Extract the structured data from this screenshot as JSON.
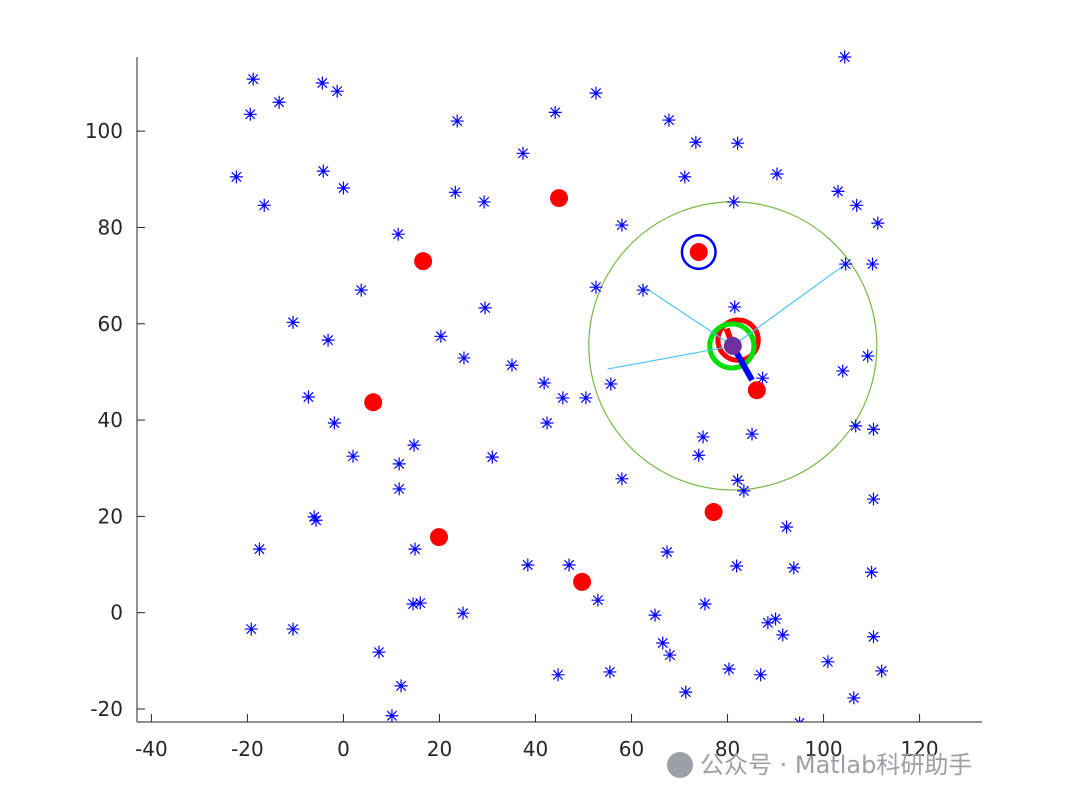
{
  "chart_data": {
    "type": "scatter",
    "xlim": [
      -43,
      133
    ],
    "ylim": [
      -22.7,
      115.4
    ],
    "xticks": [
      -40,
      -20,
      0,
      20,
      40,
      60,
      80,
      100,
      120
    ],
    "yticks": [
      -20,
      0,
      20,
      40,
      60,
      80,
      100
    ],
    "series": [
      {
        "marker": "asterisk",
        "color": "#0000ff",
        "x": [
          -18.8,
          -19.4,
          -13.4,
          -4.4,
          -1.3,
          -22.3,
          -16.5,
          -4.2,
          0.0,
          11.4,
          3.7,
          -10.5,
          -3.2,
          -7.3,
          -1.9,
          2.0,
          14.7,
          11.6,
          11.6,
          -6.1,
          -5.7,
          -17.5,
          -19.2,
          -10.5,
          7.4,
          12.0,
          10.1,
          14.9,
          14.5,
          16.0,
          24.9,
          20.3,
          25.1,
          29.5,
          23.3,
          23.7,
          29.3,
          37.4,
          44.1,
          52.6,
          35.1,
          41.8,
          45.7,
          50.5,
          42.4,
          31.0,
          38.4,
          47.0,
          53.0,
          44.7,
          55.5,
          55.7,
          58.0,
          52.6,
          58.0,
          62.4,
          67.8,
          73.4,
          71.1,
          82.1,
          81.3,
          90.3,
          81.5,
          87.3,
          74.9,
          74.0,
          85.1,
          82.1,
          83.4,
          103.0,
          106.9,
          111.3,
          104.6,
          110.2,
          109.2,
          104.0,
          106.7,
          110.4,
          110.4,
          104.4,
          67.4,
          81.9,
          92.3,
          93.8,
          110.0,
          64.9,
          75.3,
          88.4,
          90.0,
          91.5,
          66.5,
          68.0,
          80.3,
          86.9,
          100.9,
          110.4,
          112.1,
          106.3,
          71.3,
          95.0
        ],
        "y": [
          110.8,
          103.5,
          106.0,
          110.0,
          108.3,
          90.5,
          84.6,
          91.7,
          88.2,
          78.6,
          67.0,
          60.3,
          56.6,
          44.8,
          39.4,
          32.5,
          34.8,
          30.9,
          25.7,
          19.9,
          19.2,
          13.2,
          -3.4,
          -3.4,
          -8.2,
          -15.2,
          -21.4,
          13.2,
          1.8,
          2.0,
          -0.1,
          57.4,
          52.9,
          63.3,
          87.3,
          102.1,
          85.3,
          95.4,
          103.9,
          107.9,
          51.4,
          47.7,
          44.6,
          44.6,
          39.4,
          32.3,
          9.9,
          9.9,
          2.6,
          -12.9,
          -12.3,
          47.5,
          27.8,
          67.6,
          80.5,
          67.0,
          102.3,
          97.7,
          90.5,
          97.5,
          85.3,
          91.1,
          63.5,
          48.7,
          36.5,
          32.7,
          37.1,
          27.5,
          25.3,
          87.5,
          84.6,
          80.9,
          72.4,
          72.4,
          53.3,
          50.2,
          38.8,
          38.1,
          23.6,
          115.4,
          12.6,
          9.7,
          17.8,
          9.3,
          8.4,
          -0.5,
          1.8,
          -2.1,
          -1.3,
          -4.6,
          -6.3,
          -8.8,
          -11.7,
          -12.9,
          -10.2,
          -5.0,
          -12.1,
          -17.7,
          -16.5,
          -22.9
        ]
      },
      {
        "marker": "dot",
        "color": "#ff0000",
        "x": [
          44.9,
          16.6,
          6.2,
          19.9,
          49.7,
          77.1,
          86.1,
          74.0
        ],
        "y": [
          86.1,
          73.0,
          43.7,
          15.7,
          6.4,
          20.9,
          46.2,
          74.9
        ]
      },
      {
        "marker": "dot",
        "color": "#7030a0",
        "x": [
          81.1
        ],
        "y": [
          55.4
        ]
      }
    ],
    "segments": [
      {
        "color": "#4fc3f7",
        "x": [
          81.1,
          62.4
        ],
        "y": [
          55.4,
          67.8
        ]
      },
      {
        "color": "#4fc3f7",
        "x": [
          81.1,
          104.6
        ],
        "y": [
          55.4,
          72.4
        ]
      },
      {
        "color": "#4fc3f7",
        "x": [
          81.1,
          55.0
        ],
        "y": [
          55.4,
          50.6
        ]
      },
      {
        "color": "#0000ff",
        "x": [
          81.1,
          85.1
        ],
        "y": [
          55.4,
          48.3
        ]
      },
      {
        "color": "#ff0000",
        "x": [
          81.1,
          79.8
        ],
        "y": [
          55.4,
          59.0
        ]
      }
    ],
    "circles": [
      {
        "color": "#77b843",
        "x": 81.1,
        "y": 55.4,
        "r": 30
      },
      {
        "color": "#0000ff",
        "x": 74.0,
        "y": 74.9,
        "r": 3.5
      },
      {
        "color": "#ff0000",
        "x": 82.2,
        "y": 56.6,
        "r": 4.2
      },
      {
        "color": "#00dd00",
        "x": 80.9,
        "y": 55.4,
        "r": 4.6
      }
    ],
    "watermark": "公众号 · Matlab科研助手"
  }
}
